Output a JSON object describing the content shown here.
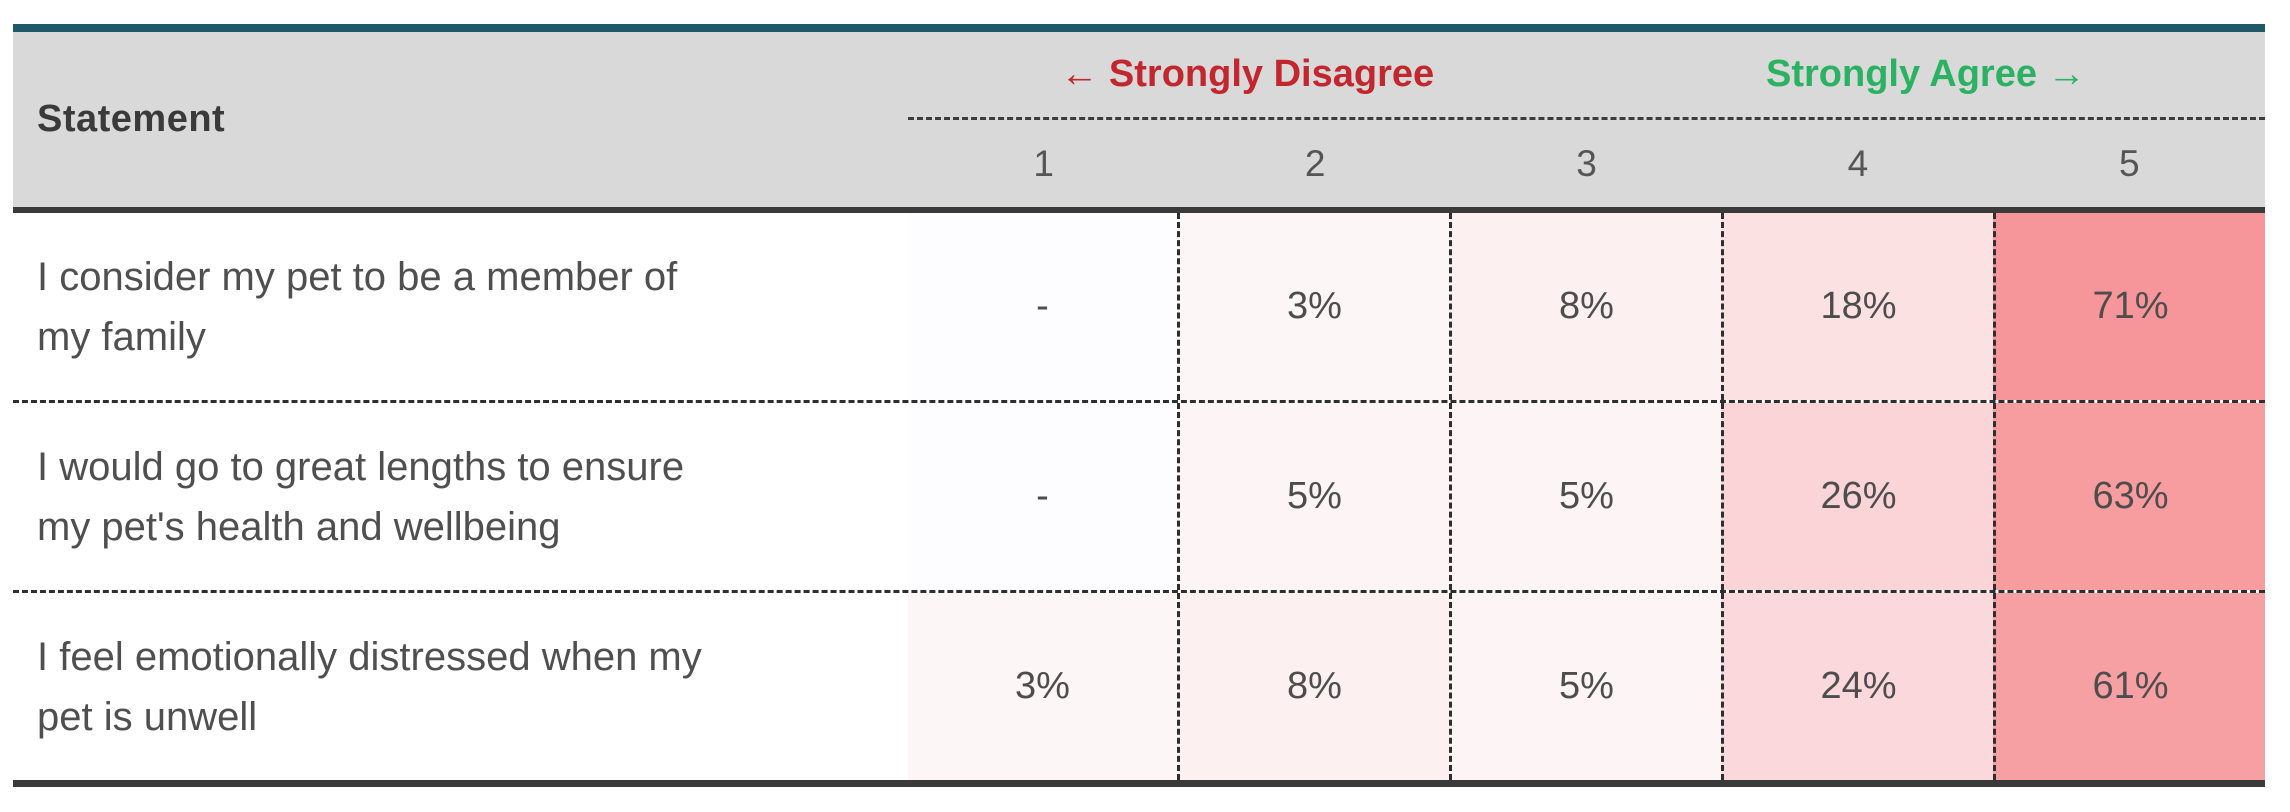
{
  "colors": {
    "top_border": "#1f5866",
    "header_bg": "#d9d9d9",
    "heavy_border": "#3a3a3a",
    "dashed_border": "#2e2e2e",
    "disagree_label": "#c1272d",
    "agree_label": "#2bb162",
    "header_text": "#3a3a3a",
    "statement_text": "#4f4f4f",
    "value_text": "#4d4d4d"
  },
  "table": {
    "header": {
      "statement_label": "Statement",
      "disagree_label": "← Strongly Disagree",
      "agree_label": "Strongly Agree →",
      "scale": [
        "1",
        "2",
        "3",
        "4",
        "5"
      ]
    },
    "rows": [
      {
        "statement": "I consider my pet to be a member of my family",
        "cells": [
          {
            "value": "-",
            "bg": "#fdfcfe"
          },
          {
            "value": "3%",
            "bg": "#fdf6f7"
          },
          {
            "value": "8%",
            "bg": "#fdf0f1"
          },
          {
            "value": "18%",
            "bg": "#fce1e3"
          },
          {
            "value": "71%",
            "bg": "#f6969a"
          }
        ]
      },
      {
        "statement": "I would go to great lengths to ensure my pet's health and wellbeing",
        "cells": [
          {
            "value": "-",
            "bg": "#fdfcfe"
          },
          {
            "value": "5%",
            "bg": "#fdf4f5"
          },
          {
            "value": "5%",
            "bg": "#fdf4f5"
          },
          {
            "value": "26%",
            "bg": "#fbd4d7"
          },
          {
            "value": "63%",
            "bg": "#f79da0"
          }
        ]
      },
      {
        "statement": "I feel emotionally distressed when my pet is unwell",
        "cells": [
          {
            "value": "3%",
            "bg": "#fdf6f7"
          },
          {
            "value": "8%",
            "bg": "#fdf0f1"
          },
          {
            "value": "5%",
            "bg": "#fdf4f5"
          },
          {
            "value": "24%",
            "bg": "#fbd8db"
          },
          {
            "value": "61%",
            "bg": "#f7a0a3"
          }
        ]
      }
    ]
  },
  "chart_data": {
    "type": "heatmap",
    "title": "",
    "columns": [
      "1",
      "2",
      "3",
      "4",
      "5"
    ],
    "scale_left_label": "Strongly Disagree",
    "scale_right_label": "Strongly Agree",
    "rows": [
      "I consider my pet to be a member of my family",
      "I would go to great lengths to ensure my pet's health and wellbeing",
      "I feel emotionally distressed when my pet is unwell"
    ],
    "values_pct": [
      [
        null,
        3,
        8,
        18,
        71
      ],
      [
        null,
        5,
        5,
        26,
        63
      ],
      [
        3,
        8,
        5,
        24,
        61
      ]
    ],
    "null_display": "-",
    "layout": {
      "heat_low_color": "#ffffff",
      "heat_high_color": "#f6969a",
      "grid": "dashed"
    }
  }
}
